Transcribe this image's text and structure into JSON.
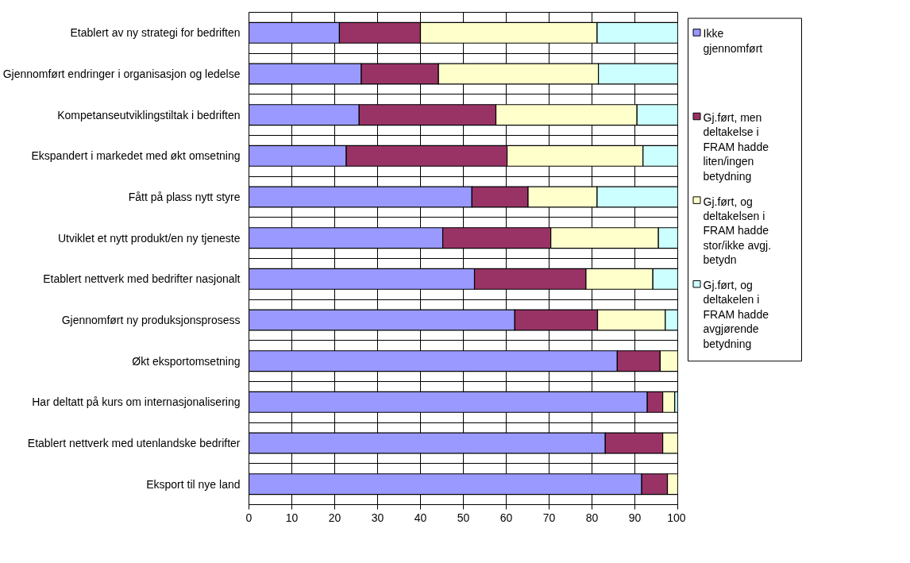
{
  "chart_data": {
    "type": "bar",
    "orientation": "horizontal",
    "stacked": true,
    "categories": [
      "Etablert av ny strategi for bedriften",
      "Gjennomført endringer i organisasjon og ledelse",
      "Kompetanseutviklingstiltak i bedriften",
      "Ekspandert i markedet med økt omsetning",
      "Fått på plass nytt styre",
      "Utviklet et nytt produkt/en ny tjeneste",
      "Etablert nettverk med bedrifter nasjonalt",
      "Gjennomført ny produksjonsprosess",
      "Økt eksportomsetning",
      "Har deltatt på kurs om internasjonalisering",
      "Etablert nettverk med utenlandske bedrifter",
      "Eksport til nye land"
    ],
    "series": [
      {
        "name": "Ikke gjennomført",
        "color": "#9999ff",
        "values": [
          21.1,
          26.2,
          25.7,
          22.7,
          52.0,
          45.2,
          52.6,
          62.0,
          85.9,
          92.9,
          83.1,
          91.6
        ]
      },
      {
        "name": "Gj.ført, men deltakelse i FRAM hadde liten/ingen betydning",
        "color": "#993366",
        "values": [
          18.9,
          18.0,
          31.9,
          37.5,
          13.1,
          25.2,
          26.0,
          19.3,
          10.0,
          3.6,
          13.4,
          6.0
        ]
      },
      {
        "name": "Gj.ført, og deltakelsen i FRAM hadde stor/ikke avgj. betydn",
        "color": "#ffffcc",
        "values": [
          41.2,
          37.3,
          32.9,
          31.7,
          16.1,
          25.1,
          15.6,
          15.8,
          4.1,
          2.8,
          3.5,
          2.4
        ]
      },
      {
        "name": "Gj.ført, og deltakelen i FRAM hadde avgjørende betydning",
        "color": "#ccffff",
        "values": [
          18.8,
          18.5,
          9.5,
          8.1,
          18.8,
          4.5,
          5.8,
          2.9,
          null,
          0.7,
          null,
          null
        ]
      }
    ],
    "xlim": [
      0,
      100
    ],
    "xticks": [
      0,
      10,
      20,
      30,
      40,
      50,
      60,
      70,
      80,
      90,
      100
    ],
    "grid": true,
    "legend": "right"
  }
}
